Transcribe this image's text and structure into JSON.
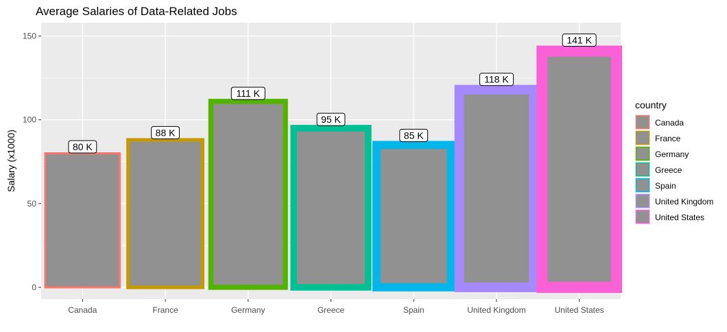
{
  "chart_data": {
    "type": "bar",
    "title": "Average Salaries of Data-Related Jobs",
    "xlabel": "",
    "ylabel": "Salary (x1000)",
    "categories": [
      "Canada",
      "France",
      "Germany",
      "Greece",
      "Spain",
      "United Kingdom",
      "United States"
    ],
    "values": [
      80,
      88,
      111,
      95,
      85,
      118,
      141
    ],
    "data_labels": [
      "80 K",
      "88 K",
      "111 K",
      "95 K",
      "85 K",
      "118 K",
      "141 K"
    ],
    "outline_colors": [
      "#F8766D",
      "#C49A00",
      "#53B400",
      "#00C094",
      "#00B6EB",
      "#A58AFF",
      "#FB61D7"
    ],
    "fill_color": "#919191",
    "ylim": [
      -7,
      158
    ],
    "yticks": [
      0,
      50,
      100,
      150
    ],
    "grid": true,
    "legend": {
      "title": "country",
      "position": "right",
      "entries": [
        "Canada",
        "France",
        "Germany",
        "Greece",
        "Spain",
        "United Kingdom",
        "United States"
      ]
    }
  }
}
